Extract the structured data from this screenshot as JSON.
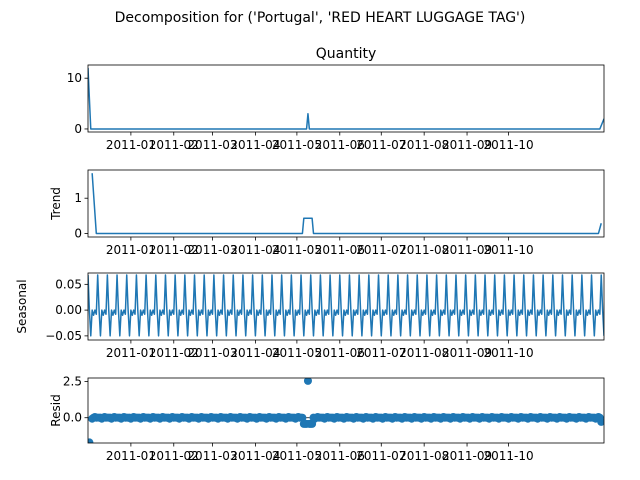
{
  "figure": {
    "suptitle": "Decomposition for ('Portugal', 'RED HEART LUGGAGE TAG')"
  },
  "chart_data": [
    {
      "type": "line",
      "key": "observed",
      "title": "Quantity",
      "ylabel": "",
      "xlim": [
        "2010-12-01",
        "2011-12-09"
      ],
      "ylim": [
        -0.6,
        12.6
      ],
      "yticks": [
        0,
        10
      ],
      "ytick_labels": [
        "0",
        "10"
      ],
      "xticks": [
        "2011-01-01",
        "2011-02-01",
        "2011-03-01",
        "2011-04-01",
        "2011-05-01",
        "2011-06-01",
        "2011-07-01",
        "2011-08-01",
        "2011-09-01",
        "2011-10-01"
      ],
      "xtick_labels": [
        "2011-01",
        "2011-02",
        "2011-03",
        "2011-04",
        "2011-05",
        "2011-06",
        "2011-07",
        "2011-08",
        "2011-09",
        "2011-10"
      ],
      "color": "#1f77b4",
      "x": [
        "2010-12-01",
        "2010-12-03",
        "2011-05-08",
        "2011-05-09",
        "2011-05-10",
        "2011-12-06",
        "2011-12-09"
      ],
      "values": [
        12,
        0,
        0,
        3,
        0,
        0,
        2
      ]
    },
    {
      "type": "line",
      "key": "trend",
      "title": "",
      "ylabel": "Trend",
      "xlim": [
        "2010-12-01",
        "2011-12-09"
      ],
      "ylim": [
        -0.1,
        1.8
      ],
      "yticks": [
        0,
        1
      ],
      "ytick_labels": [
        "0",
        "1"
      ],
      "xticks": [
        "2011-01-01",
        "2011-02-01",
        "2011-03-01",
        "2011-04-01",
        "2011-05-01",
        "2011-06-01",
        "2011-07-01",
        "2011-08-01",
        "2011-09-01",
        "2011-10-01"
      ],
      "xtick_labels": [
        "2011-01",
        "2011-02",
        "2011-03",
        "2011-04",
        "2011-05",
        "2011-06",
        "2011-07",
        "2011-08",
        "2011-09",
        "2011-10"
      ],
      "color": "#1f77b4",
      "x": [
        "2010-12-04",
        "2010-12-07",
        "2011-05-05",
        "2011-05-06",
        "2011-05-12",
        "2011-05-13",
        "2011-12-05",
        "2011-12-07"
      ],
      "values": [
        1.71,
        0,
        0,
        0.43,
        0.43,
        0,
        0,
        0.29
      ]
    },
    {
      "type": "line",
      "key": "seasonal",
      "title": "",
      "ylabel": "Seasonal",
      "xlim": [
        "2010-12-01",
        "2011-12-09"
      ],
      "ylim": [
        -0.058,
        0.072
      ],
      "yticks": [
        -0.05,
        0,
        0.05
      ],
      "ytick_labels": [
        "−0.05",
        "0.00",
        "0.05"
      ],
      "xticks": [
        "2011-01-01",
        "2011-02-01",
        "2011-03-01",
        "2011-04-01",
        "2011-05-01",
        "2011-06-01",
        "2011-07-01",
        "2011-08-01",
        "2011-09-01",
        "2011-10-01"
      ],
      "xtick_labels": [
        "2011-01",
        "2011-02",
        "2011-03",
        "2011-04",
        "2011-05",
        "2011-06",
        "2011-07",
        "2011-08",
        "2011-09",
        "2011-10"
      ],
      "color": "#1f77b4",
      "start": "2010-12-01",
      "period_days": 7,
      "pattern": [
        0.068,
        0.0,
        -0.05,
        0.0,
        -0.01,
        0.0,
        -0.008
      ],
      "n_points": 374
    },
    {
      "type": "scatter",
      "key": "resid",
      "title": "",
      "ylabel": "Resid",
      "xlim": [
        "2010-12-01",
        "2011-12-09"
      ],
      "ylim": [
        -1.75,
        2.75
      ],
      "yticks": [
        0,
        2.5
      ],
      "ytick_labels": [
        "0.0",
        "2.5"
      ],
      "xticks": [
        "2011-01-01",
        "2011-02-01",
        "2011-03-01",
        "2011-04-01",
        "2011-05-01",
        "2011-06-01",
        "2011-07-01",
        "2011-08-01",
        "2011-09-01",
        "2011-10-01"
      ],
      "xtick_labels": [
        "2011-01",
        "2011-02",
        "2011-03",
        "2011-04",
        "2011-05",
        "2011-06",
        "2011-07",
        "2011-08",
        "2011-09",
        "2011-10"
      ],
      "color": "#1f77b4",
      "baseline_line": true,
      "start": "2010-12-04",
      "end": "2011-12-07",
      "base_pattern": [
        -0.068,
        0.0,
        0.05,
        0.0,
        0.01,
        0.0,
        0.008
      ],
      "overrides": [
        {
          "x": "2010-12-02",
          "y": -1.71
        },
        {
          "x": "2011-05-06",
          "y": -0.43
        },
        {
          "x": "2011-05-07",
          "y": -0.43
        },
        {
          "x": "2011-05-08",
          "y": -0.43
        },
        {
          "x": "2011-05-09",
          "y": 2.55
        },
        {
          "x": "2011-05-10",
          "y": -0.43
        },
        {
          "x": "2011-05-11",
          "y": -0.43
        },
        {
          "x": "2011-05-12",
          "y": -0.43
        },
        {
          "x": "2011-12-07",
          "y": -0.29
        }
      ]
    }
  ]
}
